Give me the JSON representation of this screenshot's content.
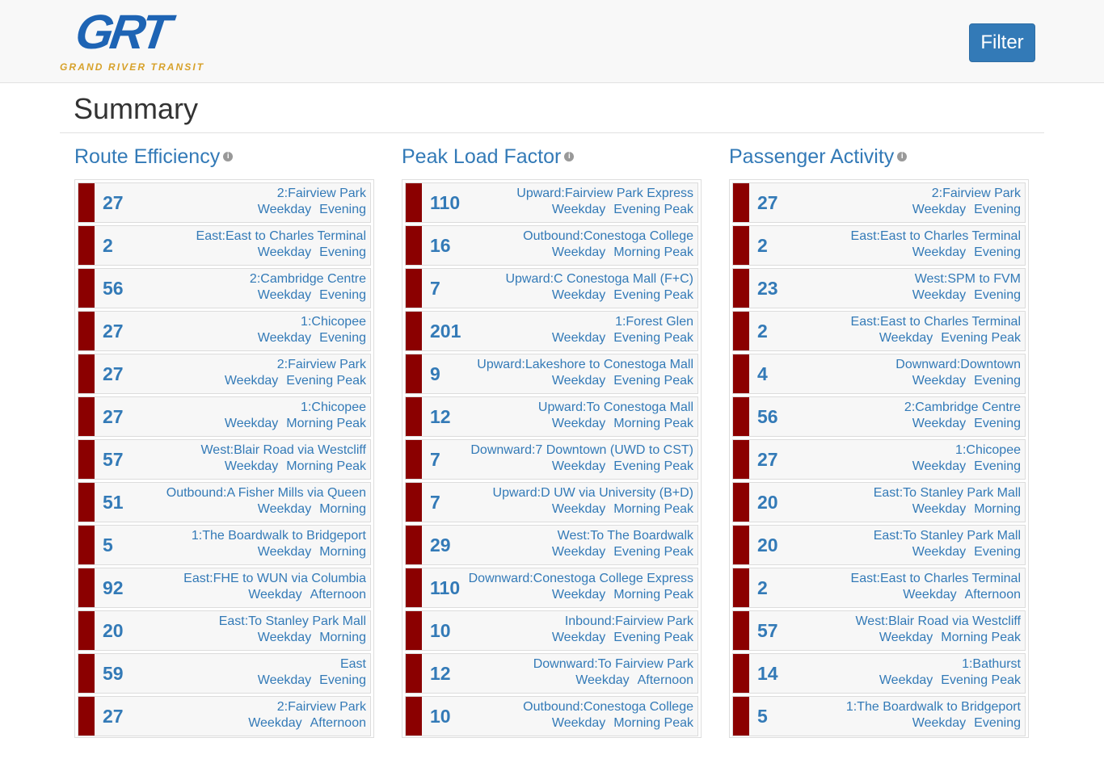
{
  "header": {
    "logo_text": "GRT",
    "logo_subtitle": "GRAND RIVER TRANSIT",
    "filter_label": "Filter"
  },
  "page": {
    "title": "Summary"
  },
  "sections": [
    {
      "title": "Route Efficiency",
      "items": [
        {
          "value": "27",
          "route": "2:Fairview Park",
          "day": "Weekday",
          "period": "Evening"
        },
        {
          "value": "2",
          "route": "East:East to Charles Terminal",
          "day": "Weekday",
          "period": "Evening"
        },
        {
          "value": "56",
          "route": "2:Cambridge Centre",
          "day": "Weekday",
          "period": "Evening"
        },
        {
          "value": "27",
          "route": "1:Chicopee",
          "day": "Weekday",
          "period": "Evening"
        },
        {
          "value": "27",
          "route": "2:Fairview Park",
          "day": "Weekday",
          "period": "Evening Peak"
        },
        {
          "value": "27",
          "route": "1:Chicopee",
          "day": "Weekday",
          "period": "Morning Peak"
        },
        {
          "value": "57",
          "route": "West:Blair Road via Westcliff",
          "day": "Weekday",
          "period": "Morning Peak"
        },
        {
          "value": "51",
          "route": "Outbound:A Fisher Mills via Queen",
          "day": "Weekday",
          "period": "Morning"
        },
        {
          "value": "5",
          "route": "1:The Boardwalk to Bridgeport",
          "day": "Weekday",
          "period": "Morning"
        },
        {
          "value": "92",
          "route": "East:FHE to WUN via Columbia",
          "day": "Weekday",
          "period": "Afternoon"
        },
        {
          "value": "20",
          "route": "East:To Stanley Park Mall",
          "day": "Weekday",
          "period": "Morning"
        },
        {
          "value": "59",
          "route": "East",
          "day": "Weekday",
          "period": "Evening"
        },
        {
          "value": "27",
          "route": "2:Fairview Park",
          "day": "Weekday",
          "period": "Afternoon"
        }
      ]
    },
    {
      "title": "Peak Load Factor",
      "items": [
        {
          "value": "110",
          "route": "Upward:Fairview Park Express",
          "day": "Weekday",
          "period": "Evening Peak"
        },
        {
          "value": "16",
          "route": "Outbound:Conestoga College",
          "day": "Weekday",
          "period": "Morning Peak"
        },
        {
          "value": "7",
          "route": "Upward:C Conestoga Mall (F+C)",
          "day": "Weekday",
          "period": "Evening Peak"
        },
        {
          "value": "201",
          "route": "1:Forest Glen",
          "day": "Weekday",
          "period": "Evening Peak"
        },
        {
          "value": "9",
          "route": "Upward:Lakeshore to Conestoga Mall",
          "day": "Weekday",
          "period": "Evening Peak"
        },
        {
          "value": "12",
          "route": "Upward:To Conestoga Mall",
          "day": "Weekday",
          "period": "Morning Peak"
        },
        {
          "value": "7",
          "route": "Downward:7 Downtown (UWD to CST)",
          "day": "Weekday",
          "period": "Evening Peak"
        },
        {
          "value": "7",
          "route": "Upward:D UW via University (B+D)",
          "day": "Weekday",
          "period": "Morning Peak"
        },
        {
          "value": "29",
          "route": "West:To The Boardwalk",
          "day": "Weekday",
          "period": "Evening Peak"
        },
        {
          "value": "110",
          "route": "Downward:Conestoga College Express",
          "day": "Weekday",
          "period": "Morning Peak"
        },
        {
          "value": "10",
          "route": "Inbound:Fairview Park",
          "day": "Weekday",
          "period": "Evening Peak"
        },
        {
          "value": "12",
          "route": "Downward:To Fairview Park",
          "day": "Weekday",
          "period": "Afternoon"
        },
        {
          "value": "10",
          "route": "Outbound:Conestoga College",
          "day": "Weekday",
          "period": "Morning Peak"
        }
      ]
    },
    {
      "title": "Passenger Activity",
      "items": [
        {
          "value": "27",
          "route": "2:Fairview Park",
          "day": "Weekday",
          "period": "Evening"
        },
        {
          "value": "2",
          "route": "East:East to Charles Terminal",
          "day": "Weekday",
          "period": "Evening"
        },
        {
          "value": "23",
          "route": "West:SPM to FVM",
          "day": "Weekday",
          "period": "Evening"
        },
        {
          "value": "2",
          "route": "East:East to Charles Terminal",
          "day": "Weekday",
          "period": "Evening Peak"
        },
        {
          "value": "4",
          "route": "Downward:Downtown",
          "day": "Weekday",
          "period": "Evening"
        },
        {
          "value": "56",
          "route": "2:Cambridge Centre",
          "day": "Weekday",
          "period": "Evening"
        },
        {
          "value": "27",
          "route": "1:Chicopee",
          "day": "Weekday",
          "period": "Evening"
        },
        {
          "value": "20",
          "route": "East:To Stanley Park Mall",
          "day": "Weekday",
          "period": "Morning"
        },
        {
          "value": "20",
          "route": "East:To Stanley Park Mall",
          "day": "Weekday",
          "period": "Evening"
        },
        {
          "value": "2",
          "route": "East:East to Charles Terminal",
          "day": "Weekday",
          "period": "Afternoon"
        },
        {
          "value": "57",
          "route": "West:Blair Road via Westcliff",
          "day": "Weekday",
          "period": "Morning Peak"
        },
        {
          "value": "14",
          "route": "1:Bathurst",
          "day": "Weekday",
          "period": "Evening Peak"
        },
        {
          "value": "5",
          "route": "1:The Boardwalk to Bridgeport",
          "day": "Weekday",
          "period": "Evening"
        }
      ]
    }
  ],
  "colors": {
    "accent": "#337ab7",
    "bar": "#8b0000",
    "logo_blue": "#1e64b4",
    "logo_gold": "#d7a12a"
  },
  "icons": {
    "info": "info-circle-icon"
  }
}
